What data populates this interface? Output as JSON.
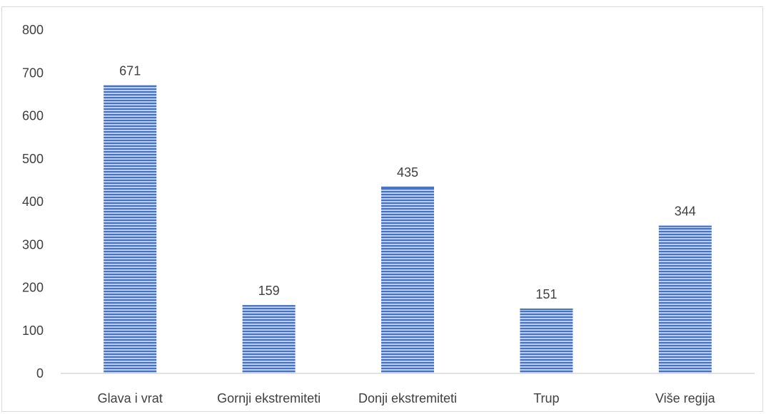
{
  "chart_data": {
    "type": "bar",
    "title": "",
    "xlabel": "",
    "ylabel": "",
    "categories": [
      "Glava i vrat",
      "Gornji ekstremiteti",
      "Donji ekstremiteti",
      "Trup",
      "Više regija"
    ],
    "values": [
      671,
      159,
      435,
      151,
      344
    ],
    "data_labels": [
      "671",
      "159",
      "435",
      "151",
      "344"
    ],
    "ylim": [
      0,
      800
    ],
    "yticks": [
      0,
      100,
      200,
      300,
      400,
      500,
      600,
      700,
      800
    ],
    "ytick_labels": [
      "0",
      "100",
      "200",
      "300",
      "400",
      "500",
      "600",
      "700",
      "800"
    ],
    "grid": false,
    "legend": "none",
    "bar_color": "#4472c4",
    "bar_pattern": "horizontal-lines"
  }
}
